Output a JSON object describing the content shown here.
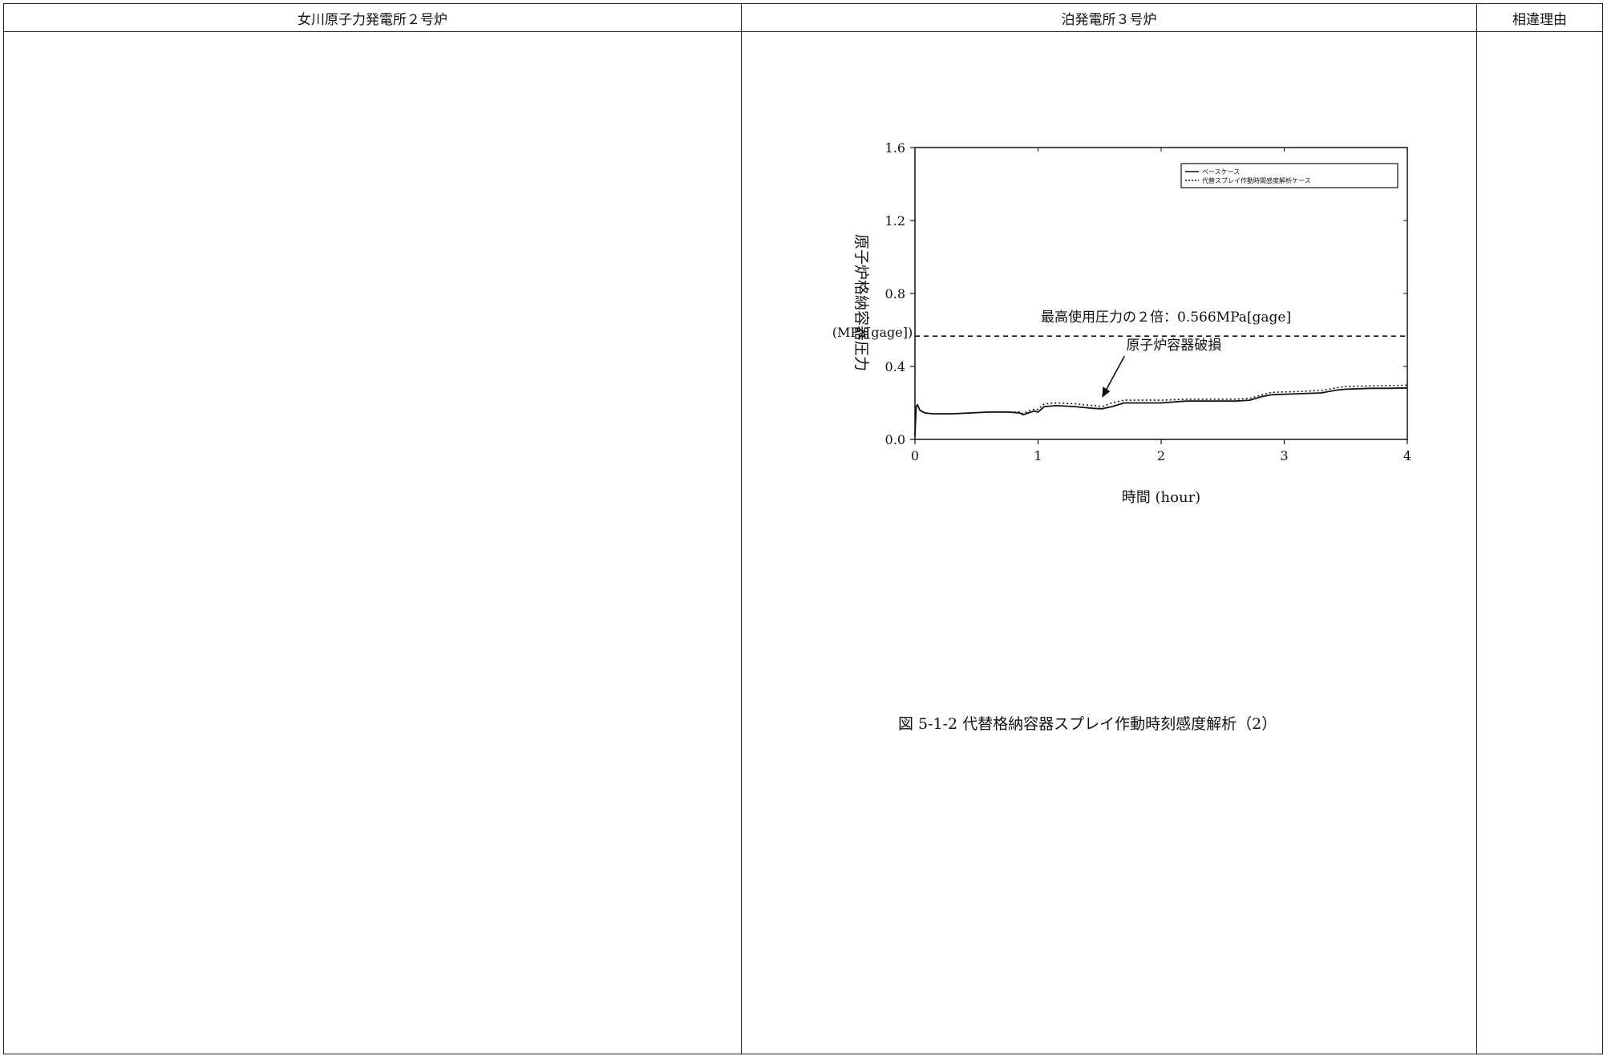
{
  "table": {
    "headers": [
      "女川原子力発電所２号炉",
      "泊発電所３号炉",
      "相違理由"
    ]
  },
  "figure": {
    "caption": "図 5-1-2 代替格納容器スプレイ作動時刻感度解析（2）"
  },
  "chart_data": {
    "type": "line",
    "title": "",
    "xlabel": "時間 (hour)",
    "ylabel": "原子炉格納容器圧力",
    "ylabel_unit": "(MPa[gage])",
    "xlim": [
      0,
      4
    ],
    "ylim": [
      0.0,
      1.6
    ],
    "xticks": [
      0,
      1,
      2,
      3,
      4
    ],
    "xtick_labels": [
      "0",
      "1",
      "2",
      "3",
      "4"
    ],
    "yticks": [
      0.0,
      0.4,
      0.8,
      1.2,
      1.6
    ],
    "ytick_labels": [
      "0.0",
      "0.4",
      "0.8",
      "1.2",
      "1.6"
    ],
    "grid": false,
    "legend_position": "top-right",
    "series": [
      {
        "name": "ベースケース",
        "style": "solid",
        "x": [
          0,
          0.01,
          0.02,
          0.04,
          0.08,
          0.15,
          0.3,
          0.45,
          0.6,
          0.75,
          0.85,
          0.88,
          0.92,
          0.97,
          1.0,
          1.05,
          1.15,
          1.3,
          1.45,
          1.52,
          1.6,
          1.7,
          1.8,
          2.0,
          2.2,
          2.4,
          2.6,
          2.72,
          2.82,
          2.9,
          3.1,
          3.3,
          3.42,
          3.5,
          3.7,
          3.85,
          4.0
        ],
        "values": [
          0.02,
          0.18,
          0.19,
          0.16,
          0.145,
          0.14,
          0.14,
          0.145,
          0.15,
          0.15,
          0.145,
          0.135,
          0.145,
          0.155,
          0.15,
          0.18,
          0.185,
          0.18,
          0.17,
          0.168,
          0.18,
          0.2,
          0.2,
          0.2,
          0.21,
          0.21,
          0.21,
          0.215,
          0.235,
          0.245,
          0.25,
          0.255,
          0.27,
          0.275,
          0.28,
          0.28,
          0.282
        ]
      },
      {
        "name": "代替スプレイ作動時間感度解析ケース",
        "style": "dotted",
        "x": [
          0,
          0.01,
          0.02,
          0.04,
          0.08,
          0.15,
          0.3,
          0.45,
          0.6,
          0.75,
          0.85,
          0.88,
          0.92,
          0.97,
          1.0,
          1.05,
          1.15,
          1.3,
          1.45,
          1.52,
          1.6,
          1.7,
          1.8,
          2.0,
          2.2,
          2.4,
          2.6,
          2.72,
          2.82,
          2.9,
          3.1,
          3.3,
          3.42,
          3.5,
          3.7,
          3.85,
          4.0
        ],
        "values": [
          0.02,
          0.18,
          0.19,
          0.16,
          0.145,
          0.14,
          0.14,
          0.145,
          0.15,
          0.15,
          0.15,
          0.14,
          0.155,
          0.165,
          0.165,
          0.195,
          0.2,
          0.195,
          0.185,
          0.18,
          0.2,
          0.215,
          0.215,
          0.215,
          0.22,
          0.22,
          0.22,
          0.225,
          0.245,
          0.258,
          0.262,
          0.268,
          0.282,
          0.29,
          0.293,
          0.295,
          0.297
        ]
      }
    ],
    "annotations": [
      {
        "text": "最高使用圧力の２倍：0.566MPa[gage]",
        "y": 0.566,
        "style": "dashed-line"
      },
      {
        "text": "原子炉容器破損",
        "x": 1.52,
        "y": 0.22,
        "style": "arrow"
      }
    ]
  }
}
